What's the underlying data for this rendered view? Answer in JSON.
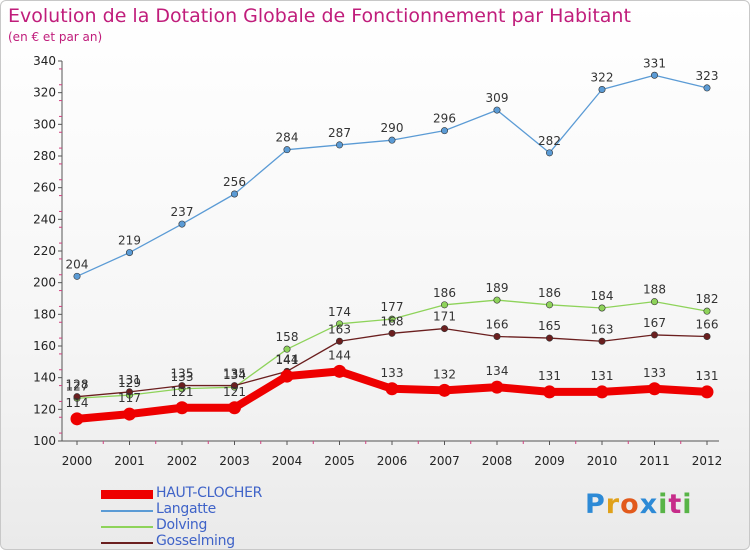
{
  "title": "Evolution de la Dotation Globale de Fonctionnement par Habitant",
  "subtitle": "(en € et par an)",
  "logo": {
    "letters": [
      "P",
      "r",
      "o",
      "x",
      "i",
      "t",
      "i"
    ],
    "colors": {
      "P": "#2d8ad6",
      "r": "#e0a11a",
      "o": "#e25a1c",
      "x": "#2d8ad6",
      "i": "#58b447",
      "t": "#c72c8a",
      "i2": "#58b447"
    }
  },
  "chart_data": {
    "type": "line",
    "categories": [
      "2000",
      "2001",
      "2002",
      "2003",
      "2004",
      "2005",
      "2006",
      "2007",
      "2008",
      "2009",
      "2010",
      "2011",
      "2012"
    ],
    "ylim": [
      100,
      340
    ],
    "yticks": [
      100,
      120,
      140,
      160,
      180,
      200,
      220,
      240,
      260,
      280,
      300,
      320,
      340
    ],
    "grid": false,
    "legend_position": "bottom-left",
    "series": [
      {
        "name": "Langatte",
        "color": "#5b9bd5",
        "values": [
          204,
          219,
          237,
          256,
          284,
          287,
          290,
          296,
          309,
          282,
          322,
          331,
          323
        ],
        "labels": [
          "204",
          "219",
          "237",
          "256",
          "284",
          "287",
          "290",
          "296",
          "309",
          "282",
          "322",
          "331",
          "323"
        ]
      },
      {
        "name": "Dolving",
        "color": "#8ed35a",
        "values": [
          127,
          129,
          133,
          134,
          158,
          174,
          177,
          186,
          189,
          186,
          184,
          188,
          182
        ],
        "labels": [
          "127",
          "129",
          "133",
          "134",
          "158",
          "174",
          "177",
          "186",
          "189",
          "186",
          "184",
          "188",
          "182"
        ]
      },
      {
        "name": "Gosselming",
        "color": "#6b1f1f",
        "values": [
          128,
          131,
          135,
          135,
          144,
          163,
          168,
          171,
          166,
          165,
          163,
          167,
          166
        ],
        "labels": [
          "128",
          "131",
          "135",
          "135",
          "144",
          "163",
          "168",
          "171",
          "166",
          "165",
          "163",
          "167",
          "166"
        ]
      },
      {
        "name": "HAUT-CLOCHER",
        "color": "#ee0000",
        "values": [
          114,
          117,
          121,
          121,
          141,
          144,
          133,
          132,
          134,
          131,
          131,
          133,
          131
        ],
        "labels": [
          "114",
          "117",
          "121",
          "121",
          "141",
          "144",
          "133",
          "132",
          "134",
          "131",
          "131",
          "133",
          "131"
        ]
      }
    ],
    "legend": [
      {
        "name": "HAUT-CLOCHER",
        "color": "#ee0000"
      },
      {
        "name": "Langatte",
        "color": "#5b9bd5"
      },
      {
        "name": "Dolving",
        "color": "#8ed35a"
      },
      {
        "name": "Gosselming",
        "color": "#6b1f1f"
      }
    ]
  }
}
